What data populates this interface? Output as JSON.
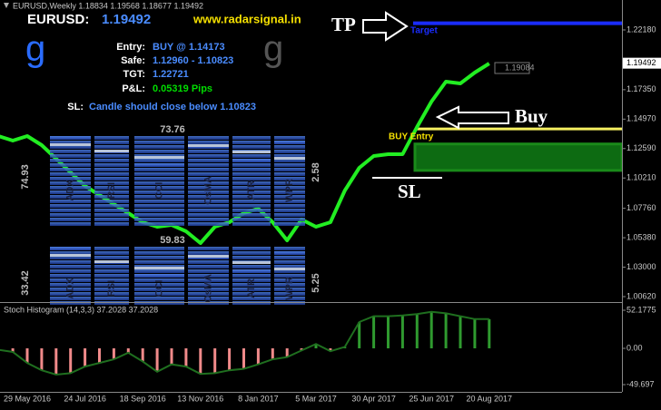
{
  "chart_data": [
    {
      "type": "line",
      "title": "EURUSD,Weekly  1.18834 1.19568 1.18677 1.19492",
      "color": "#22ee22",
      "categories": [
        null,
        null,
        "29 May 2016",
        null,
        null,
        null,
        "24 Jul 2016",
        null,
        null,
        null,
        "18 Sep 2016",
        null,
        null,
        null,
        "13 Nov 2016",
        null,
        null,
        null,
        "8 Jan 2017",
        null,
        null,
        null,
        "5 Mar 2017",
        null,
        null,
        null,
        "30 Apr 2017",
        null,
        null,
        null,
        "25 Jun 2017",
        null,
        null,
        null,
        "20 Aug 2017"
      ],
      "values": [
        1.136,
        1.1323,
        1.136,
        1.1287,
        1.1177,
        1.1067,
        1.0957,
        1.0883,
        1.081,
        1.0737,
        1.0663,
        1.0627,
        1.0641,
        1.059,
        1.0495,
        1.0627,
        1.0663,
        1.0737,
        1.0773,
        1.0663,
        1.0517,
        1.0685,
        1.0627,
        1.0663,
        1.092,
        1.1103,
        1.1199,
        1.1213,
        1.1213,
        1.1433,
        1.1639,
        1.18,
        1.1785,
        1.1873,
        1.1947
      ],
      "ylim": [
        1.0018,
        1.246
      ],
      "yticks": [
        {
          "value": 1.2218,
          "label": "1.22180"
        },
        {
          "value": 1.1735,
          "label": "1.17350"
        },
        {
          "value": 1.1497,
          "label": "1.14970"
        },
        {
          "value": 1.1259,
          "label": "1.12590"
        },
        {
          "value": 1.1021,
          "label": "1.10210"
        },
        {
          "value": 1.0776,
          "label": "1.07760"
        },
        {
          "value": 1.0538,
          "label": "1.05380"
        },
        {
          "value": 1.03,
          "label": "1.03000"
        },
        {
          "value": 1.0062,
          "label": "1.00620"
        }
      ],
      "last_price": 1.19492
    },
    {
      "type": "bar",
      "title": "Stoch Histogram (14,3,3) 37.2028 37.2028",
      "colors": {
        "positive": "#2f9a2f",
        "negative": "#f08a8a",
        "line": "#1f6f1f"
      },
      "values": [
        -2,
        -5,
        -20,
        -30,
        -36,
        -34,
        -25,
        -20,
        -15,
        -6,
        -18,
        -32,
        -22,
        -25,
        -35,
        -34,
        -30,
        -28,
        -22,
        -15,
        -12,
        -3,
        6,
        -4,
        2,
        36,
        44,
        44,
        45,
        47,
        50,
        48,
        44,
        40,
        40
      ],
      "ylim": [
        -59.6,
        60.9
      ],
      "yticks": [
        52.1775,
        {
          "value": 0,
          "label": "0.00"
        },
        -49.697
      ]
    }
  ],
  "header": {
    "pair": "EURUSD:",
    "price": "1.19492",
    "site": "www.radarsignal.in",
    "logo": "g",
    "logo2": "g"
  },
  "signal": {
    "rows": [
      {
        "label": "Entry:",
        "value": "BUY @ 1.14173"
      },
      {
        "label": "Safe:",
        "value": "1.12960 - 1.10823"
      },
      {
        "label": "TGT:",
        "value": "1.22721"
      },
      {
        "label": "P&L:",
        "value": "0.05319  Pips"
      }
    ],
    "sl_label": "SL:",
    "sl_text": "Candle should close below 1.10823"
  },
  "levels": {
    "entry": 1.14173,
    "safe_high": 1.1296,
    "safe_low": 1.10823,
    "target": 1.22721
  },
  "annotations": {
    "tp": "TP",
    "target": "Target",
    "buy": "Buy",
    "buy_entry": "BUY Entry",
    "sl": "SL",
    "price_box": "1.19084"
  },
  "indicators": {
    "labels": [
      "ADX",
      "RSI",
      "CCI",
      "OsMA",
      "ATR",
      "WPR"
    ],
    "top_value": "73.76",
    "bottom_value": "59.83",
    "left_top": "74.93",
    "left_bottom": "33.42",
    "right_top": "2.58",
    "right_bottom": "5.25"
  }
}
